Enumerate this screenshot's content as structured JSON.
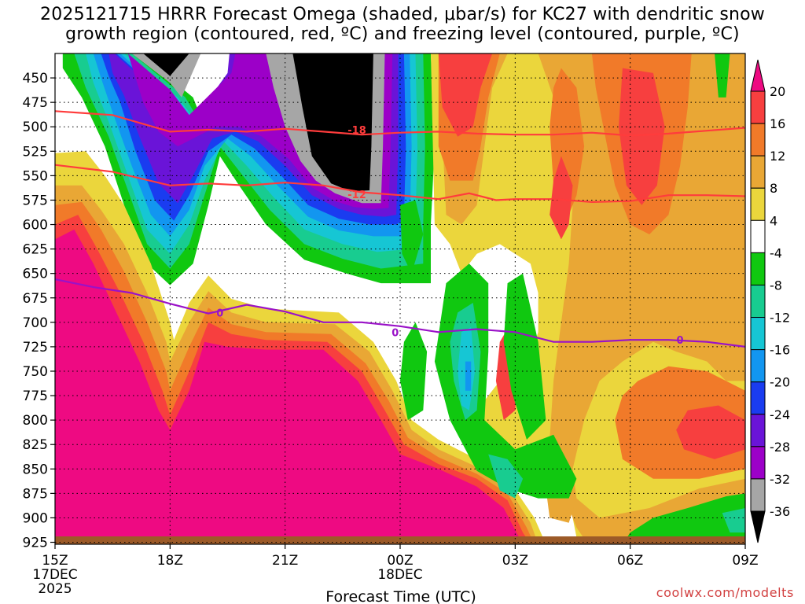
{
  "title_line1": "2025121715 HRRR Forecast Omega (shaded, μbar/s) for KC27 with dendritic snow",
  "title_line2": "growth region (contoured, red, ºC) and freezing level (contoured, purple, ºC)",
  "credit": "coolwx.com/modelts",
  "chart_data": {
    "type": "heatmap",
    "title": "2025121715 HRRR Forecast Omega (shaded, μbar/s) for KC27 with dendritic snow growth region (contoured, red, ºC) and freezing level (contoured, purple, ºC)",
    "xlabel": "Forecast Time (UTC)",
    "ylabel": "",
    "y_scale": "pressure (inverted)",
    "x_ticks": [
      {
        "hour": 15,
        "label": "15Z",
        "sub1": "17DEC",
        "sub2": "2025"
      },
      {
        "hour": 18,
        "label": "18Z",
        "sub1": "",
        "sub2": ""
      },
      {
        "hour": 21,
        "label": "21Z",
        "sub1": "",
        "sub2": ""
      },
      {
        "hour": 24,
        "label": "00Z",
        "sub1": "18DEC",
        "sub2": ""
      },
      {
        "hour": 27,
        "label": "03Z",
        "sub1": "",
        "sub2": ""
      },
      {
        "hour": 30,
        "label": "06Z",
        "sub1": "",
        "sub2": ""
      },
      {
        "hour": 33,
        "label": "09Z",
        "sub1": "",
        "sub2": ""
      }
    ],
    "y_ticks": [
      450,
      475,
      500,
      525,
      550,
      575,
      600,
      625,
      650,
      675,
      700,
      725,
      750,
      775,
      800,
      825,
      850,
      875,
      900,
      925
    ],
    "ylim": [
      425,
      927
    ],
    "colorbar": {
      "labels": [
        "20",
        "16",
        "12",
        "8",
        "4",
        "-4",
        "-8",
        "-12",
        "-16",
        "-20",
        "-24",
        "-28",
        "-32",
        "-36"
      ],
      "bins": [
        {
          "from": 20,
          "to": null,
          "color": "#ee0a82"
        },
        {
          "from": 16,
          "to": 20,
          "color": "#f73f3f"
        },
        {
          "from": 12,
          "to": 16,
          "color": "#f17a29"
        },
        {
          "from": 8,
          "to": 12,
          "color": "#e9a735"
        },
        {
          "from": 4,
          "to": 8,
          "color": "#ebd63c"
        },
        {
          "from": -4,
          "to": 4,
          "color": "#ffffff"
        },
        {
          "from": -8,
          "to": -4,
          "color": "#10c810"
        },
        {
          "from": -12,
          "to": -8,
          "color": "#18cc90"
        },
        {
          "from": -16,
          "to": -12,
          "color": "#16c6d4"
        },
        {
          "from": -20,
          "to": -16,
          "color": "#1296f0"
        },
        {
          "from": -24,
          "to": -20,
          "color": "#1a3cf0"
        },
        {
          "from": -28,
          "to": -24,
          "color": "#6a14d8"
        },
        {
          "from": -32,
          "to": -28,
          "color": "#9c00c8"
        },
        {
          "from": -36,
          "to": -32,
          "color": "#a6a6a6"
        },
        {
          "from": null,
          "to": -36,
          "color": "#000000"
        }
      ]
    },
    "contours": [
      {
        "name": "-18",
        "color": "#ff3c3c",
        "label_at": [
          24,
          503
        ],
        "points": [
          [
            15,
            484
          ],
          [
            16.5,
            488
          ],
          [
            18,
            505
          ],
          [
            19,
            503
          ],
          [
            20,
            505
          ],
          [
            21,
            502
          ],
          [
            22,
            505
          ],
          [
            23,
            508
          ],
          [
            24,
            506
          ],
          [
            25,
            505
          ],
          [
            26,
            507
          ],
          [
            27,
            508
          ],
          [
            28,
            508
          ],
          [
            29,
            506
          ],
          [
            30,
            509
          ],
          [
            31,
            507
          ],
          [
            32,
            504
          ],
          [
            33,
            501
          ]
        ]
      },
      {
        "name": "-12",
        "color": "#ff3c3c",
        "label_at": [
          24,
          569
        ],
        "points": [
          [
            15,
            539
          ],
          [
            16.5,
            546
          ],
          [
            18,
            560
          ],
          [
            19,
            558
          ],
          [
            20,
            560
          ],
          [
            21,
            557
          ],
          [
            22,
            560
          ],
          [
            23,
            567
          ],
          [
            24,
            570
          ],
          [
            25,
            574
          ],
          [
            25.8,
            568
          ],
          [
            26.5,
            575
          ],
          [
            27,
            574
          ],
          [
            28,
            574
          ],
          [
            29,
            577
          ],
          [
            30,
            576
          ],
          [
            31,
            570
          ],
          [
            32,
            570
          ],
          [
            33,
            571
          ]
        ]
      },
      {
        "name": "0",
        "color": "#9a12c8",
        "label_at": [
          19,
          691
        ],
        "points": [
          [
            15,
            656
          ],
          [
            16,
            664
          ],
          [
            17,
            670
          ],
          [
            18,
            681
          ],
          [
            19,
            691
          ],
          [
            20,
            682
          ],
          [
            21,
            689
          ],
          [
            22,
            700
          ],
          [
            23,
            700
          ],
          [
            24,
            704
          ],
          [
            25,
            710
          ],
          [
            26,
            707
          ],
          [
            27,
            710
          ],
          [
            28,
            720
          ],
          [
            29,
            720
          ],
          [
            30,
            718
          ],
          [
            31,
            718
          ],
          [
            32,
            720
          ],
          [
            33,
            725
          ]
        ]
      }
    ],
    "contour_labels_at": {
      "-18": [
        24,
        503
      ],
      "-12": [
        24,
        569
      ],
      "0": [
        25,
        710
      ]
    },
    "ground": {
      "color": "#9c5a28"
    },
    "omega_shading_notes": "Strong rising motion (<= -36 μbar/s) 500-575 mb near 21-23Z; strong sinking (>= 20 μbar/s) below 700 mb 15-03Z; moderate sinking 4-16 μbar/s after 00Z."
  }
}
